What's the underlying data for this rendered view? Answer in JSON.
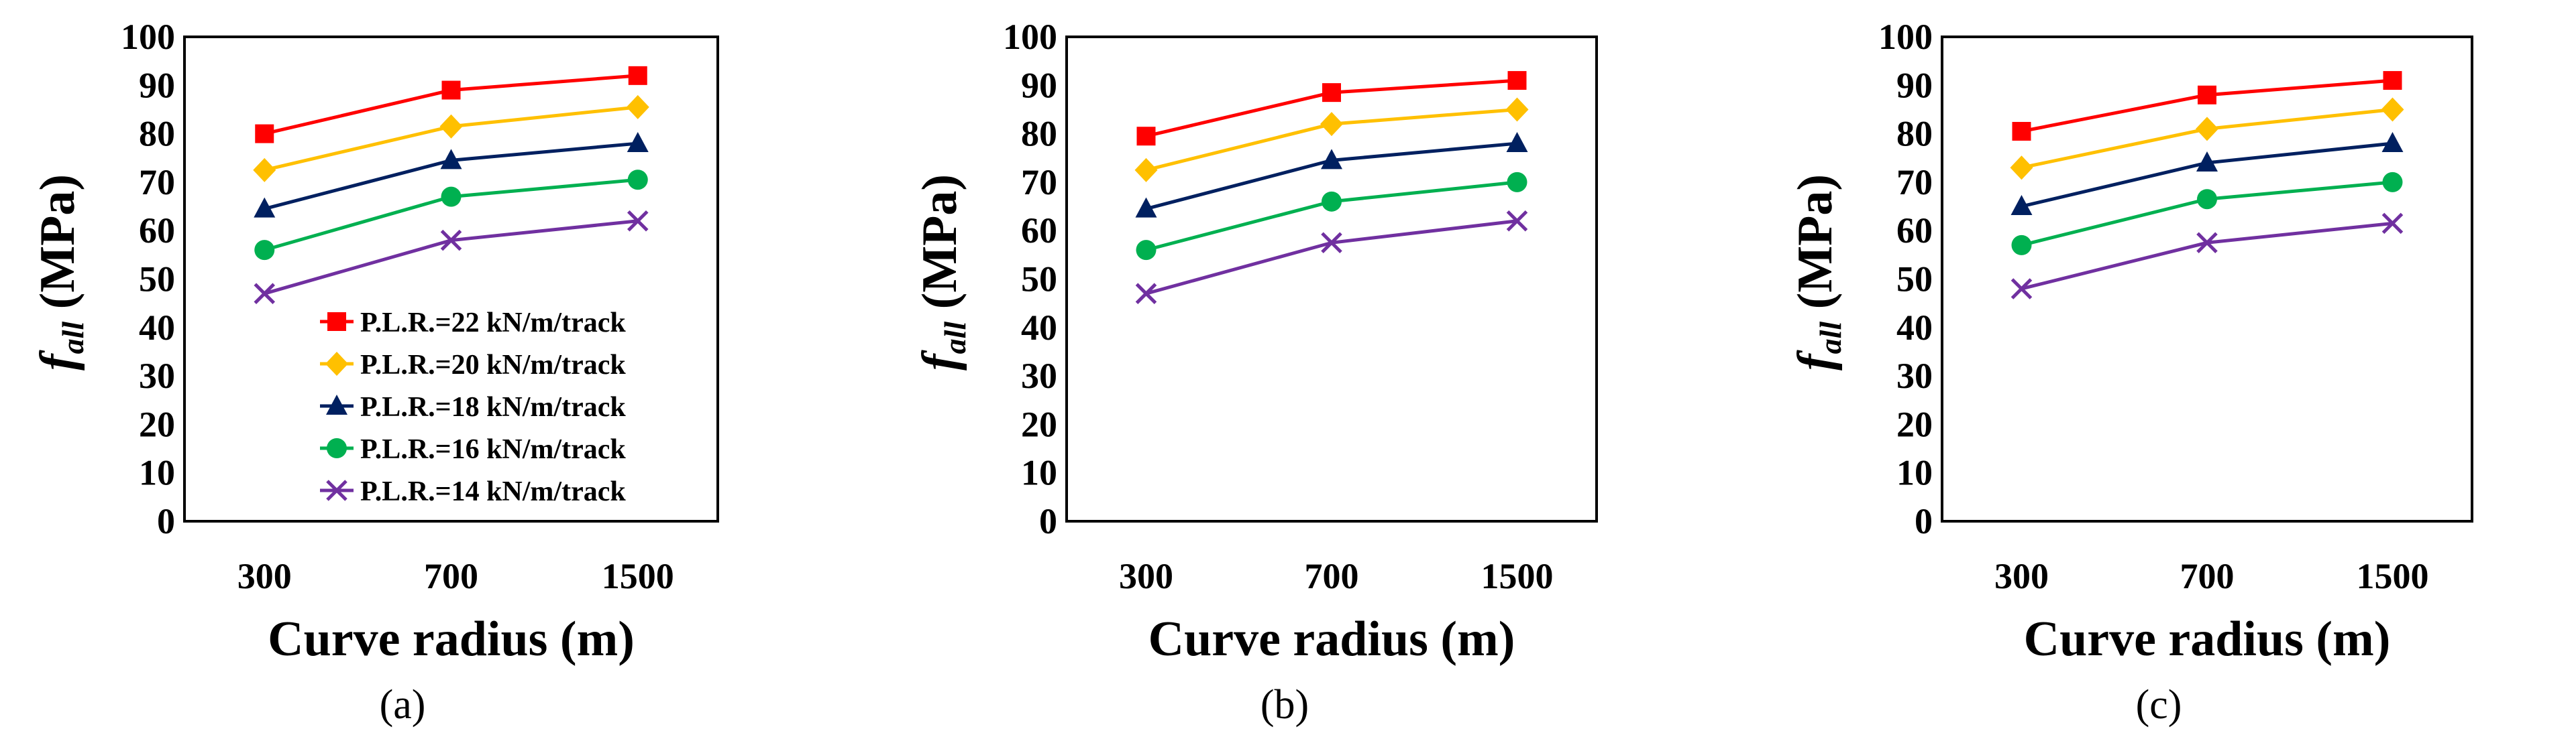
{
  "figure": {
    "panel_labels": [
      "(a)",
      "(b)",
      "(c)"
    ]
  },
  "series_styles": [
    {
      "name": "P.L.R.=22 kN/m/track",
      "color": "#FF0000",
      "marker": "square"
    },
    {
      "name": "P.L.R.=20 kN/m/track",
      "color": "#FFC000",
      "marker": "diamond"
    },
    {
      "name": "P.L.R.=18 kN/m/track",
      "color": "#002060",
      "marker": "triangle"
    },
    {
      "name": "P.L.R.=16 kN/m/track",
      "color": "#00B050",
      "marker": "circle"
    },
    {
      "name": "P.L.R.=14 kN/m/track",
      "color": "#7030A0",
      "marker": "x"
    }
  ],
  "chart_data": [
    {
      "type": "line",
      "panel": "(a)",
      "title": "",
      "xlabel": "Curve radius (m)",
      "ylabel_main": "f",
      "ylabel_sub": "all",
      "ylabel_unit": " (MPa)",
      "categories": [
        "300",
        "700",
        "1500"
      ],
      "ylim": [
        0,
        100
      ],
      "yticks": [
        0,
        10,
        20,
        30,
        40,
        50,
        60,
        70,
        80,
        90,
        100
      ],
      "legend": true,
      "legend_position": "bottom-right",
      "series": [
        {
          "name": "P.L.R.=22 kN/m/track",
          "values": [
            80,
            89,
            92
          ]
        },
        {
          "name": "P.L.R.=20 kN/m/track",
          "values": [
            72.5,
            81.5,
            85.5
          ]
        },
        {
          "name": "P.L.R.=18 kN/m/track",
          "values": [
            64.5,
            74.5,
            78
          ]
        },
        {
          "name": "P.L.R.=16 kN/m/track",
          "values": [
            56,
            67,
            70.5
          ]
        },
        {
          "name": "P.L.R.=14 kN/m/track",
          "values": [
            47,
            58,
            62
          ]
        }
      ]
    },
    {
      "type": "line",
      "panel": "(b)",
      "title": "",
      "xlabel": "Curve radius (m)",
      "ylabel_main": "f",
      "ylabel_sub": "all",
      "ylabel_unit": " (MPa)",
      "categories": [
        "300",
        "700",
        "1500"
      ],
      "ylim": [
        0,
        100
      ],
      "yticks": [
        0,
        10,
        20,
        30,
        40,
        50,
        60,
        70,
        80,
        90,
        100
      ],
      "legend": false,
      "series": [
        {
          "name": "P.L.R.=22 kN/m/track",
          "values": [
            79.5,
            88.5,
            91
          ]
        },
        {
          "name": "P.L.R.=20 kN/m/track",
          "values": [
            72.5,
            82,
            85
          ]
        },
        {
          "name": "P.L.R.=18 kN/m/track",
          "values": [
            64.5,
            74.5,
            78
          ]
        },
        {
          "name": "P.L.R.=16 kN/m/track",
          "values": [
            56,
            66,
            70
          ]
        },
        {
          "name": "P.L.R.=14 kN/m/track",
          "values": [
            47,
            57.5,
            62
          ]
        }
      ]
    },
    {
      "type": "line",
      "panel": "(c)",
      "title": "",
      "xlabel": "Curve radius (m)",
      "ylabel_main": "f",
      "ylabel_sub": "all",
      "ylabel_unit": " (MPa)",
      "categories": [
        "300",
        "700",
        "1500"
      ],
      "ylim": [
        0,
        100
      ],
      "yticks": [
        0,
        10,
        20,
        30,
        40,
        50,
        60,
        70,
        80,
        90,
        100
      ],
      "legend": false,
      "series": [
        {
          "name": "P.L.R.=22 kN/m/track",
          "values": [
            80.5,
            88,
            91
          ]
        },
        {
          "name": "P.L.R.=20 kN/m/track",
          "values": [
            73,
            81,
            85
          ]
        },
        {
          "name": "P.L.R.=18 kN/m/track",
          "values": [
            65,
            74,
            78
          ]
        },
        {
          "name": "P.L.R.=16 kN/m/track",
          "values": [
            57,
            66.5,
            70
          ]
        },
        {
          "name": "P.L.R.=14 kN/m/track",
          "values": [
            48,
            57.5,
            61.5
          ]
        }
      ]
    }
  ]
}
